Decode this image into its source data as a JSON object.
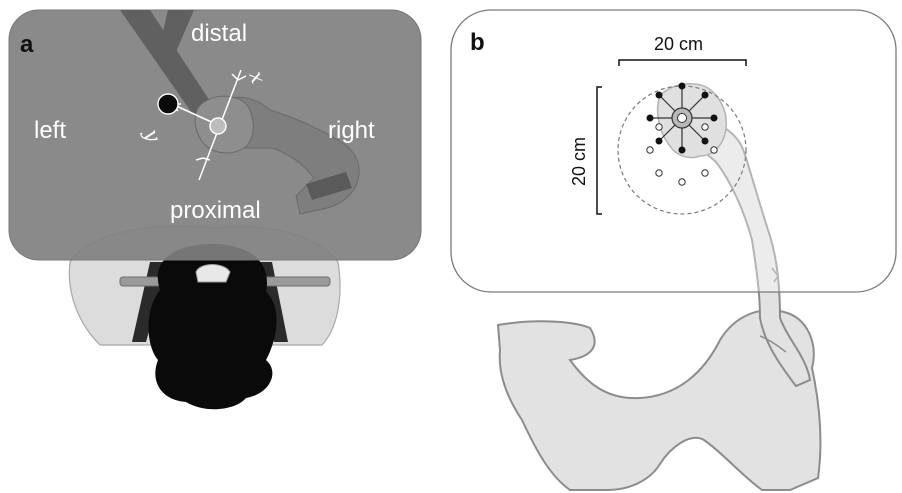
{
  "panel_a": {
    "letter": "a",
    "labels": {
      "distal": "distal",
      "proximal": "proximal",
      "left": "left",
      "right": "right"
    },
    "axes": {
      "x": "x",
      "y": "y"
    }
  },
  "panel_b": {
    "letter": "b",
    "width_label": "20 cm",
    "height_label": "20 cm",
    "target_count": 8
  },
  "colors": {
    "workspace_gray": "#8a8a8a",
    "body_fill": "#e2e2e2",
    "outline": "#8c8c8c",
    "hair": "#0a0a0a"
  }
}
